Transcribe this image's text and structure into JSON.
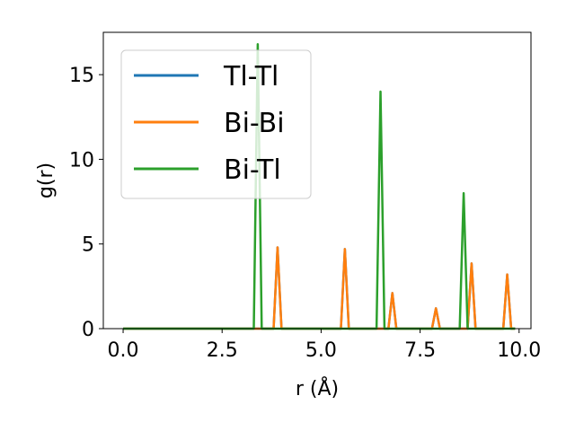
{
  "chart_data": {
    "type": "line",
    "xlabel": "r (Å)",
    "ylabel": "g(r)",
    "xlim": [
      -0.5,
      10.3
    ],
    "ylim": [
      0,
      17.5
    ],
    "xticks": [
      0.0,
      2.5,
      5.0,
      7.5,
      10.0
    ],
    "xtick_labels": [
      "0.0",
      "2.5",
      "5.0",
      "7.5",
      "10.0"
    ],
    "yticks": [
      0,
      5,
      10,
      15
    ],
    "ytick_labels": [
      "0",
      "5",
      "10",
      "15"
    ],
    "grid": false,
    "legend_position": "top-left",
    "series": [
      {
        "name": "Tl-Tl",
        "color": "#1f77b4",
        "x": [
          0.0,
          3.8,
          3.9,
          4.0,
          5.5,
          5.6,
          5.7,
          6.7,
          6.8,
          6.9,
          7.8,
          7.9,
          8.0,
          8.7,
          8.8,
          8.9,
          9.6,
          9.7,
          9.8,
          9.9
        ],
        "y": [
          0,
          0,
          4.8,
          0,
          0,
          4.7,
          0,
          0,
          2.1,
          0,
          0,
          1.2,
          0,
          0,
          3.85,
          0,
          0,
          3.2,
          0,
          0
        ]
      },
      {
        "name": "Bi-Bi",
        "color": "#ff7f0e",
        "x": [
          0.0,
          3.8,
          3.9,
          4.0,
          5.5,
          5.6,
          5.7,
          6.7,
          6.8,
          6.9,
          7.8,
          7.9,
          8.0,
          8.7,
          8.8,
          8.9,
          9.6,
          9.7,
          9.8,
          9.9
        ],
        "y": [
          0,
          0,
          4.8,
          0,
          0,
          4.7,
          0,
          0,
          2.1,
          0,
          0,
          1.2,
          0,
          0,
          3.85,
          0,
          0,
          3.2,
          0,
          0
        ]
      },
      {
        "name": "Bi-Tl",
        "color": "#2ca02c",
        "x": [
          0.0,
          3.3,
          3.4,
          3.5,
          6.4,
          6.5,
          6.6,
          8.5,
          8.6,
          8.7,
          9.9
        ],
        "y": [
          0,
          0,
          16.8,
          0,
          0,
          14.0,
          0,
          0,
          8.0,
          0,
          0
        ]
      }
    ]
  }
}
